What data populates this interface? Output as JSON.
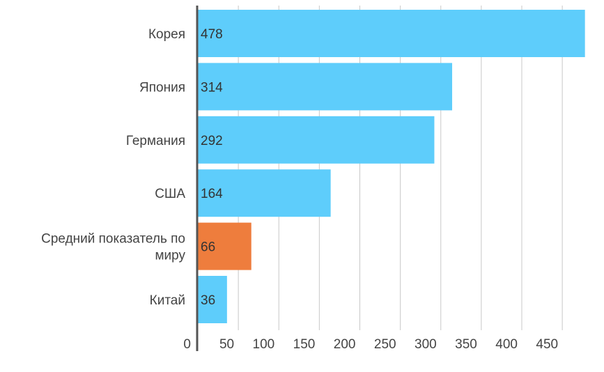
{
  "chart_data": {
    "type": "bar",
    "orientation": "horizontal",
    "categories": [
      "Корея",
      "Япония",
      "Германия",
      "США",
      "Средний показатель по миру",
      "Китай"
    ],
    "category_lines": [
      [
        "Корея"
      ],
      [
        "Япония"
      ],
      [
        "Германия"
      ],
      [
        "США"
      ],
      [
        "Средний показатель по",
        "миру"
      ],
      [
        "Китай"
      ]
    ],
    "values": [
      478,
      314,
      292,
      164,
      66,
      36
    ],
    "value_labels": [
      "478",
      "314",
      "292",
      "164",
      "66",
      "36"
    ],
    "highlight_index": 4,
    "colors": {
      "bar": "#5ecdfb",
      "highlight": "#ee7d3d",
      "grid": "#c8c8c8",
      "axis": "#555555"
    },
    "xlim": [
      0,
      480
    ],
    "ticks": [
      0,
      50,
      100,
      150,
      200,
      250,
      300,
      350,
      400,
      450
    ],
    "tick_labels": [
      "0",
      "50",
      "100",
      "150",
      "200",
      "250",
      "300",
      "350",
      "400",
      "450"
    ],
    "grid": true,
    "title": "",
    "xlabel": "",
    "ylabel": ""
  }
}
